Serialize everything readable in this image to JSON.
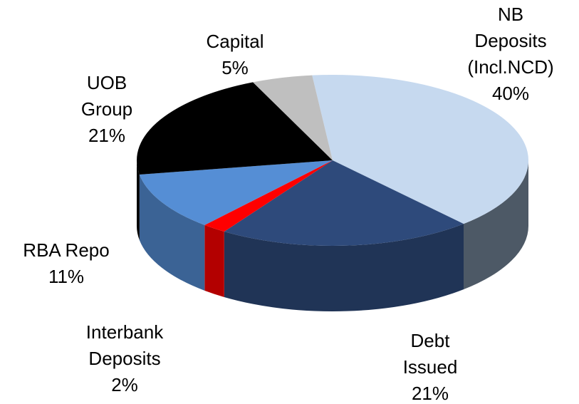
{
  "chart_data": {
    "type": "pie",
    "categories": [
      "NB Deposits (Incl.NCD)",
      "Debt Issued",
      "Interbank Deposits",
      "RBA Repo",
      "UOB Group",
      "Capital"
    ],
    "values": [
      40,
      21,
      2,
      11,
      21,
      5
    ],
    "value_labels": [
      "40%",
      "21%",
      "2%",
      "11%",
      "21%",
      "5%"
    ],
    "colors": [
      "#c6d9ef",
      "#2e4a7b",
      "#ff0000",
      "#558ed5",
      "#000000",
      "#bfbfbf"
    ]
  }
}
